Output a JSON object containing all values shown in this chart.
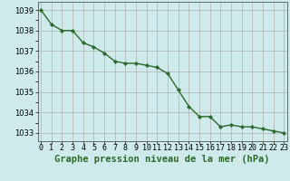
{
  "title": "Graphe pression niveau de la mer (hPa)",
  "x": [
    0,
    1,
    2,
    3,
    4,
    5,
    6,
    7,
    8,
    9,
    10,
    11,
    12,
    13,
    14,
    15,
    16,
    17,
    18,
    19,
    20,
    21,
    22,
    23
  ],
  "y": [
    1039.0,
    1038.3,
    1038.0,
    1038.0,
    1037.4,
    1037.2,
    1036.9,
    1036.5,
    1036.4,
    1036.4,
    1036.3,
    1036.2,
    1035.9,
    1035.1,
    1034.3,
    1033.8,
    1033.8,
    1033.3,
    1033.4,
    1033.3,
    1033.3,
    1033.2,
    1033.1,
    1033.0
  ],
  "line_color": "#2d6a2d",
  "marker": "D",
  "marker_size": 2.2,
  "line_width": 1.0,
  "background_color": "#ceeaea",
  "grid_color_major": "#b0b0b0",
  "grid_color_minor": "#c8c8c8",
  "title_fontsize": 7.5,
  "tick_fontsize": 6.0,
  "ylim": [
    1032.6,
    1039.4
  ],
  "xlim": [
    -0.3,
    23.3
  ],
  "yticks": [
    1033,
    1034,
    1035,
    1036,
    1037,
    1038,
    1039
  ],
  "xtick_labels": [
    "0",
    "1",
    "2",
    "3",
    "4",
    "5",
    "6",
    "7",
    "8",
    "9",
    "10",
    "11",
    "12",
    "13",
    "14",
    "15",
    "16",
    "17",
    "18",
    "19",
    "20",
    "21",
    "22",
    "23"
  ]
}
